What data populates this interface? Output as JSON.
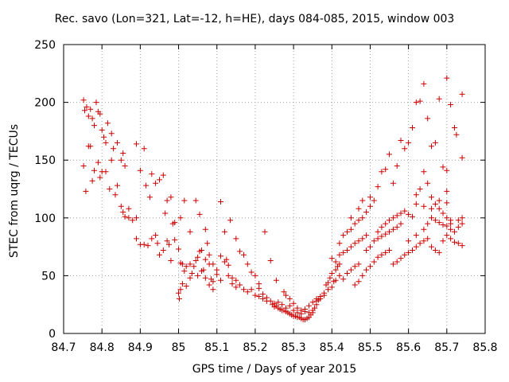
{
  "chart_data": {
    "type": "scatter",
    "title": "Rec. savo (Lon=321, Lat=-12, h=HE), days 084-085, 2015, window 003",
    "xlabel": "GPS time / Days of year 2015",
    "ylabel": "STEC from uqrg / TECUs",
    "xlim": [
      84.7,
      85.8
    ],
    "ylim": [
      0,
      250
    ],
    "xticks": [
      "84.7",
      "84.8",
      "84.9",
      "85",
      "85.1",
      "85.2",
      "85.3",
      "85.4",
      "85.5",
      "85.6",
      "85.7",
      "85.8"
    ],
    "yticks": [
      "0",
      "50",
      "100",
      "150",
      "200",
      "250"
    ],
    "grid": true,
    "marker": "plus",
    "color": "#cc0000",
    "points": [
      [
        84.752,
        202
      ],
      [
        84.755,
        193
      ],
      [
        84.76,
        196
      ],
      [
        84.765,
        188
      ],
      [
        84.77,
        194
      ],
      [
        84.775,
        186
      ],
      [
        84.78,
        180
      ],
      [
        84.785,
        200
      ],
      [
        84.79,
        192
      ],
      [
        84.795,
        190
      ],
      [
        84.8,
        176
      ],
      [
        84.805,
        170
      ],
      [
        84.81,
        165
      ],
      [
        84.815,
        182
      ],
      [
        84.825,
        173
      ],
      [
        84.83,
        160
      ],
      [
        84.84,
        165
      ],
      [
        84.85,
        150
      ],
      [
        84.855,
        156
      ],
      [
        84.86,
        145
      ],
      [
        84.752,
        145
      ],
      [
        84.758,
        123
      ],
      [
        84.765,
        162
      ],
      [
        84.77,
        162
      ],
      [
        84.775,
        132
      ],
      [
        84.78,
        141
      ],
      [
        84.79,
        148
      ],
      [
        84.795,
        135
      ],
      [
        84.8,
        140
      ],
      [
        84.81,
        140
      ],
      [
        84.82,
        125
      ],
      [
        84.825,
        150
      ],
      [
        84.835,
        120
      ],
      [
        84.84,
        128
      ],
      [
        84.85,
        110
      ],
      [
        84.855,
        105
      ],
      [
        84.86,
        101
      ],
      [
        84.87,
        108
      ],
      [
        84.88,
        98
      ],
      [
        84.89,
        100
      ],
      [
        84.89,
        164
      ],
      [
        84.9,
        141
      ],
      [
        84.91,
        160
      ],
      [
        84.915,
        128
      ],
      [
        84.925,
        118
      ],
      [
        84.93,
        138
      ],
      [
        84.94,
        130
      ],
      [
        84.95,
        133
      ],
      [
        84.96,
        137
      ],
      [
        84.965,
        104
      ],
      [
        84.97,
        115
      ],
      [
        84.98,
        118
      ],
      [
        84.985,
        95
      ],
      [
        84.99,
        96
      ],
      [
        84.87,
        100
      ],
      [
        84.89,
        82
      ],
      [
        84.9,
        77
      ],
      [
        84.91,
        77
      ],
      [
        84.92,
        76
      ],
      [
        84.93,
        82
      ],
      [
        84.94,
        85
      ],
      [
        84.945,
        78
      ],
      [
        84.95,
        68
      ],
      [
        84.96,
        72
      ],
      [
        84.97,
        80
      ],
      [
        84.975,
        77
      ],
      [
        84.98,
        63
      ],
      [
        84.99,
        81
      ],
      [
        85.0,
        73
      ],
      [
        85.005,
        61
      ],
      [
        85.01,
        60
      ],
      [
        85.015,
        54
      ],
      [
        85.02,
        58
      ],
      [
        85.03,
        60
      ],
      [
        85.035,
        52
      ],
      [
        85.045,
        63
      ],
      [
        85.05,
        66
      ],
      [
        85.055,
        71
      ],
      [
        85.06,
        72
      ],
      [
        85.065,
        55
      ],
      [
        85.07,
        64
      ],
      [
        85.08,
        68
      ],
      [
        85.09,
        60
      ],
      [
        85.1,
        55
      ],
      [
        85.11,
        67
      ],
      [
        85.12,
        62
      ],
      [
        85.125,
        64
      ],
      [
        85.13,
        59
      ],
      [
        85.14,
        48
      ],
      [
        85.15,
        46
      ],
      [
        85.005,
        100
      ],
      [
        85.015,
        115
      ],
      [
        85.03,
        88
      ],
      [
        85.045,
        115
      ],
      [
        85.055,
        103
      ],
      [
        85.07,
        90
      ],
      [
        85.075,
        78
      ],
      [
        85.08,
        60
      ],
      [
        85.085,
        47
      ],
      [
        85.09,
        38
      ],
      [
        85.11,
        114
      ],
      [
        85.12,
        88
      ],
      [
        85.135,
        98
      ],
      [
        85.15,
        82
      ],
      [
        85.16,
        71
      ],
      [
        85.17,
        68
      ],
      [
        85.18,
        60
      ],
      [
        85.19,
        53
      ],
      [
        85.2,
        50
      ],
      [
        85.21,
        43
      ],
      [
        85.0,
        35
      ],
      [
        85.002,
        30
      ],
      [
        85.005,
        38
      ],
      [
        85.01,
        43
      ],
      [
        85.02,
        41
      ],
      [
        85.03,
        48
      ],
      [
        85.04,
        58
      ],
      [
        85.05,
        50
      ],
      [
        85.06,
        54
      ],
      [
        85.07,
        48
      ],
      [
        85.08,
        42
      ],
      [
        85.09,
        45
      ],
      [
        85.1,
        51
      ],
      [
        85.11,
        46
      ],
      [
        85.13,
        50
      ],
      [
        85.14,
        43
      ],
      [
        85.15,
        40
      ],
      [
        85.16,
        42
      ],
      [
        85.17,
        38
      ],
      [
        85.18,
        36
      ],
      [
        85.19,
        38
      ],
      [
        85.2,
        33
      ],
      [
        85.21,
        32
      ],
      [
        85.22,
        30
      ],
      [
        85.225,
        88
      ],
      [
        85.23,
        28
      ],
      [
        85.24,
        63
      ],
      [
        85.245,
        25
      ],
      [
        85.25,
        23
      ],
      [
        85.255,
        46
      ],
      [
        85.21,
        39
      ],
      [
        85.22,
        34
      ],
      [
        85.23,
        31
      ],
      [
        85.24,
        28
      ],
      [
        85.25,
        26
      ],
      [
        85.26,
        27
      ],
      [
        85.27,
        25
      ],
      [
        85.275,
        36
      ],
      [
        85.28,
        33
      ],
      [
        85.29,
        30
      ],
      [
        85.255,
        24
      ],
      [
        85.26,
        22
      ],
      [
        85.265,
        21
      ],
      [
        85.27,
        20
      ],
      [
        85.275,
        20
      ],
      [
        85.28,
        19
      ],
      [
        85.285,
        18
      ],
      [
        85.29,
        17
      ],
      [
        85.295,
        16
      ],
      [
        85.3,
        15
      ],
      [
        85.305,
        15
      ],
      [
        85.31,
        14
      ],
      [
        85.315,
        14
      ],
      [
        85.32,
        13
      ],
      [
        85.325,
        12
      ],
      [
        85.33,
        12
      ],
      [
        85.335,
        13
      ],
      [
        85.34,
        14
      ],
      [
        85.345,
        16
      ],
      [
        85.35,
        18
      ],
      [
        85.28,
        22
      ],
      [
        85.29,
        24
      ],
      [
        85.3,
        26
      ],
      [
        85.31,
        22
      ],
      [
        85.32,
        20
      ],
      [
        85.33,
        19
      ],
      [
        85.34,
        18
      ],
      [
        85.35,
        20
      ],
      [
        85.355,
        22
      ],
      [
        85.36,
        25
      ],
      [
        85.3,
        20
      ],
      [
        85.31,
        18
      ],
      [
        85.32,
        17
      ],
      [
        85.33,
        21
      ],
      [
        85.34,
        24
      ],
      [
        85.35,
        27
      ],
      [
        85.36,
        30
      ],
      [
        85.365,
        29
      ],
      [
        85.37,
        32
      ],
      [
        85.38,
        35
      ],
      [
        85.36,
        28
      ],
      [
        85.37,
        30
      ],
      [
        85.38,
        33
      ],
      [
        85.385,
        42
      ],
      [
        85.39,
        44
      ],
      [
        85.395,
        48
      ],
      [
        85.4,
        52
      ],
      [
        85.41,
        55
      ],
      [
        85.415,
        58
      ],
      [
        85.42,
        60
      ],
      [
        85.39,
        38
      ],
      [
        85.4,
        40
      ],
      [
        85.405,
        45
      ],
      [
        85.41,
        46
      ],
      [
        85.42,
        50
      ],
      [
        85.43,
        47
      ],
      [
        85.44,
        52
      ],
      [
        85.45,
        55
      ],
      [
        85.46,
        58
      ],
      [
        85.47,
        60
      ],
      [
        85.4,
        65
      ],
      [
        85.41,
        62
      ],
      [
        85.42,
        68
      ],
      [
        85.43,
        70
      ],
      [
        85.44,
        72
      ],
      [
        85.45,
        75
      ],
      [
        85.46,
        78
      ],
      [
        85.47,
        80
      ],
      [
        85.48,
        82
      ],
      [
        85.49,
        85
      ],
      [
        85.42,
        78
      ],
      [
        85.43,
        85
      ],
      [
        85.44,
        88
      ],
      [
        85.45,
        90
      ],
      [
        85.46,
        95
      ],
      [
        85.47,
        98
      ],
      [
        85.48,
        100
      ],
      [
        85.49,
        105
      ],
      [
        85.5,
        110
      ],
      [
        85.51,
        115
      ],
      [
        85.45,
        100
      ],
      [
        85.47,
        108
      ],
      [
        85.48,
        115
      ],
      [
        85.5,
        118
      ],
      [
        85.52,
        127
      ],
      [
        85.53,
        140
      ],
      [
        85.54,
        142
      ],
      [
        85.55,
        155
      ],
      [
        85.56,
        130
      ],
      [
        85.57,
        145
      ],
      [
        85.58,
        167
      ],
      [
        85.59,
        160
      ],
      [
        85.6,
        165
      ],
      [
        85.61,
        178
      ],
      [
        85.62,
        200
      ],
      [
        85.63,
        201
      ],
      [
        85.64,
        216
      ],
      [
        85.65,
        186
      ],
      [
        85.66,
        162
      ],
      [
        85.67,
        165
      ],
      [
        85.68,
        203
      ],
      [
        85.7,
        221
      ],
      [
        85.71,
        198
      ],
      [
        85.72,
        178
      ],
      [
        85.725,
        172
      ],
      [
        85.74,
        207
      ],
      [
        85.74,
        152
      ],
      [
        85.7,
        141
      ],
      [
        85.69,
        144
      ],
      [
        85.7,
        123
      ],
      [
        85.46,
        42
      ],
      [
        85.47,
        45
      ],
      [
        85.48,
        50
      ],
      [
        85.49,
        55
      ],
      [
        85.5,
        58
      ],
      [
        85.51,
        62
      ],
      [
        85.52,
        66
      ],
      [
        85.53,
        68
      ],
      [
        85.54,
        70
      ],
      [
        85.55,
        72
      ],
      [
        85.49,
        72
      ],
      [
        85.5,
        75
      ],
      [
        85.51,
        80
      ],
      [
        85.52,
        82
      ],
      [
        85.53,
        84
      ],
      [
        85.54,
        86
      ],
      [
        85.55,
        88
      ],
      [
        85.56,
        90
      ],
      [
        85.57,
        92
      ],
      [
        85.58,
        95
      ],
      [
        85.52,
        88
      ],
      [
        85.53,
        92
      ],
      [
        85.54,
        95
      ],
      [
        85.55,
        98
      ],
      [
        85.56,
        100
      ],
      [
        85.57,
        102
      ],
      [
        85.58,
        104
      ],
      [
        85.59,
        106
      ],
      [
        85.6,
        103
      ],
      [
        85.61,
        101
      ],
      [
        85.56,
        60
      ],
      [
        85.57,
        62
      ],
      [
        85.58,
        65
      ],
      [
        85.59,
        68
      ],
      [
        85.6,
        70
      ],
      [
        85.61,
        72
      ],
      [
        85.62,
        75
      ],
      [
        85.63,
        78
      ],
      [
        85.64,
        80
      ],
      [
        85.65,
        82
      ],
      [
        85.6,
        80
      ],
      [
        85.62,
        85
      ],
      [
        85.64,
        90
      ],
      [
        85.65,
        95
      ],
      [
        85.66,
        100
      ],
      [
        85.67,
        98
      ],
      [
        85.68,
        96
      ],
      [
        85.69,
        94
      ],
      [
        85.7,
        93
      ],
      [
        85.71,
        95
      ],
      [
        85.62,
        120
      ],
      [
        85.63,
        125
      ],
      [
        85.64,
        140
      ],
      [
        85.65,
        130
      ],
      [
        85.66,
        118
      ],
      [
        85.67,
        112
      ],
      [
        85.68,
        108
      ],
      [
        85.69,
        104
      ],
      [
        85.7,
        100
      ],
      [
        85.71,
        98
      ],
      [
        85.66,
        75
      ],
      [
        85.67,
        72
      ],
      [
        85.68,
        70
      ],
      [
        85.69,
        80
      ],
      [
        85.7,
        85
      ],
      [
        85.71,
        82
      ],
      [
        85.72,
        79
      ],
      [
        85.73,
        78
      ],
      [
        85.74,
        76
      ],
      [
        85.74,
        95
      ],
      [
        85.72,
        88
      ],
      [
        85.73,
        92
      ],
      [
        85.74,
        100
      ],
      [
        85.73,
        98
      ],
      [
        85.71,
        90
      ],
      [
        85.7,
        113
      ],
      [
        85.68,
        115
      ],
      [
        85.66,
        108
      ],
      [
        85.64,
        110
      ],
      [
        85.62,
        112
      ]
    ]
  }
}
